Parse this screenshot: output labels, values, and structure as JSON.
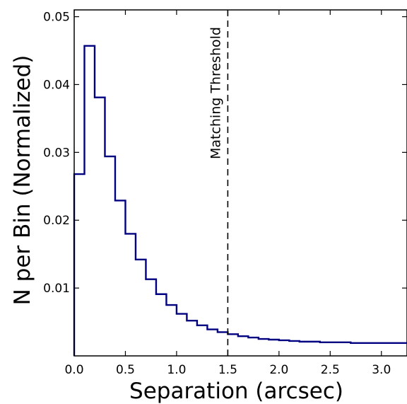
{
  "chart_data": {
    "type": "step",
    "title": "",
    "xlabel": "Separation (arcsec)",
    "ylabel": "N per Bin (Normalized)",
    "xlim": [
      0.0,
      3.25
    ],
    "ylim": [
      0.0,
      0.051
    ],
    "grid": false,
    "legend": "none",
    "xticks": [
      {
        "value": 0.0,
        "label": "0.0"
      },
      {
        "value": 0.5,
        "label": "0.5"
      },
      {
        "value": 1.0,
        "label": "1.0"
      },
      {
        "value": 1.5,
        "label": "1.5"
      },
      {
        "value": 2.0,
        "label": "2.0"
      },
      {
        "value": 2.5,
        "label": "2.5"
      },
      {
        "value": 3.0,
        "label": "3.0"
      }
    ],
    "yticks": [
      {
        "value": 0.01,
        "label": "0.01"
      },
      {
        "value": 0.02,
        "label": "0.02"
      },
      {
        "value": 0.03,
        "label": "0.03"
      },
      {
        "value": 0.04,
        "label": "0.04"
      },
      {
        "value": 0.05,
        "label": "0.05"
      }
    ],
    "series": [
      {
        "color": "#000080",
        "bin_edges": [
          0.0,
          0.1,
          0.2,
          0.3,
          0.4,
          0.5,
          0.6,
          0.7,
          0.8,
          0.9,
          1.0,
          1.1,
          1.2,
          1.3,
          1.4,
          1.5,
          1.6,
          1.7,
          1.8,
          1.9,
          2.0,
          2.1,
          2.2,
          2.3,
          2.4,
          2.5,
          2.6,
          2.7,
          2.8,
          2.9,
          3.0,
          3.1,
          3.25
        ],
        "values": [
          0.0268,
          0.0457,
          0.0381,
          0.0294,
          0.0229,
          0.018,
          0.0142,
          0.0113,
          0.0091,
          0.0075,
          0.0062,
          0.0052,
          0.0045,
          0.0039,
          0.0035,
          0.0032,
          0.0029,
          0.0027,
          0.0025,
          0.0024,
          0.0023,
          0.0022,
          0.0021,
          0.0021,
          0.002,
          0.002,
          0.002,
          0.0019,
          0.0019,
          0.0019,
          0.0019,
          0.0019
        ]
      }
    ],
    "annotations": [
      {
        "type": "vline",
        "x": 1.5,
        "style": "dashed",
        "color": "#000000",
        "text": "Matching Threshold"
      }
    ]
  }
}
